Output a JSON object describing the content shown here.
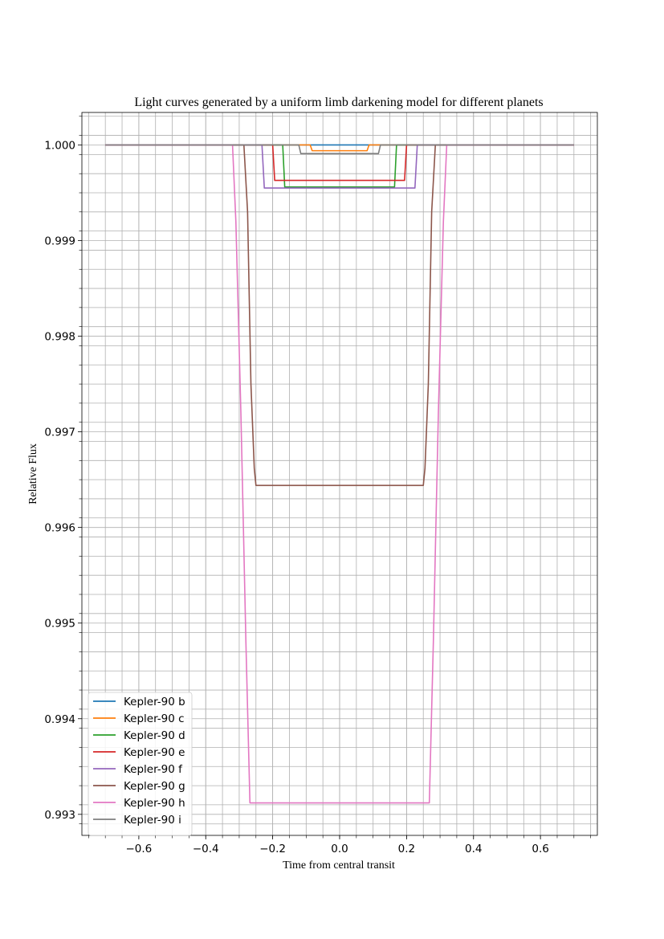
{
  "chart_data": {
    "type": "line",
    "title": "Light curves generated by a uniform limb darkening model for different planets",
    "xlabel": "Time from central transit",
    "ylabel": "Relative Flux",
    "xlim": [
      -0.77,
      0.77
    ],
    "ylim": [
      0.99278,
      1.00034
    ],
    "x_ticks": [
      -0.6,
      -0.4,
      -0.2,
      0.0,
      0.2,
      0.4,
      0.6
    ],
    "x_tick_labels": [
      "−0.6",
      "−0.4",
      "−0.2",
      "0.0",
      "0.2",
      "0.4",
      "0.6"
    ],
    "y_ticks": [
      0.993,
      0.994,
      0.995,
      0.996,
      0.997,
      0.998,
      0.999,
      1.0
    ],
    "y_tick_labels": [
      "0.993",
      "0.994",
      "0.995",
      "0.996",
      "0.997",
      "0.998",
      "0.999",
      "1.000"
    ],
    "grid": true,
    "minor_grid": true,
    "legend_position": "lower-left",
    "series": [
      {
        "name": "Kepler-90 b",
        "color": "#1f77b4",
        "x": [
          -0.7,
          0.7
        ],
        "y": [
          1.0,
          1.0
        ]
      },
      {
        "name": "Kepler-90 c",
        "color": "#ff7f0e",
        "x": [
          -0.7,
          -0.088,
          -0.082,
          0.082,
          0.088,
          0.7
        ],
        "y": [
          1.0,
          1.0,
          0.99994,
          0.99994,
          1.0,
          1.0
        ]
      },
      {
        "name": "Kepler-90 d",
        "color": "#2ca02c",
        "x": [
          -0.7,
          -0.17,
          -0.164,
          0.164,
          0.17,
          0.7
        ],
        "y": [
          1.0,
          1.0,
          0.99956,
          0.99956,
          1.0,
          1.0
        ]
      },
      {
        "name": "Kepler-90 e",
        "color": "#d62728",
        "x": [
          -0.7,
          -0.2,
          -0.194,
          0.194,
          0.2,
          0.7
        ],
        "y": [
          1.0,
          1.0,
          0.99963,
          0.99963,
          1.0,
          1.0
        ]
      },
      {
        "name": "Kepler-90 f",
        "color": "#9467bd",
        "x": [
          -0.7,
          -0.232,
          -0.225,
          0.225,
          0.232,
          0.7
        ],
        "y": [
          1.0,
          1.0,
          0.99955,
          0.99955,
          1.0,
          1.0
        ]
      },
      {
        "name": "Kepler-90 g",
        "color": "#8c564b",
        "x": [
          -0.7,
          -0.286,
          -0.275,
          -0.265,
          -0.255,
          -0.25,
          0.25,
          0.255,
          0.265,
          0.275,
          0.286,
          0.7
        ],
        "y": [
          1.0,
          1.0,
          0.9993,
          0.9975,
          0.99662,
          0.99644,
          0.99644,
          0.99662,
          0.9975,
          0.9993,
          1.0,
          1.0
        ]
      },
      {
        "name": "Kepler-90 h",
        "color": "#e377c2",
        "x": [
          -0.7,
          -0.32,
          -0.31,
          -0.295,
          -0.28,
          -0.268,
          0.268,
          0.28,
          0.295,
          0.31,
          0.32,
          0.7
        ],
        "y": [
          1.0,
          1.0,
          0.9992,
          0.9972,
          0.9948,
          0.99312,
          0.99312,
          0.9948,
          0.9972,
          0.9992,
          1.0,
          1.0
        ]
      },
      {
        "name": "Kepler-90 i",
        "color": "#7f7f7f",
        "x": [
          -0.7,
          -0.122,
          -0.116,
          0.116,
          0.122,
          0.7
        ],
        "y": [
          1.0,
          1.0,
          0.99991,
          0.99991,
          1.0,
          1.0
        ]
      }
    ]
  }
}
